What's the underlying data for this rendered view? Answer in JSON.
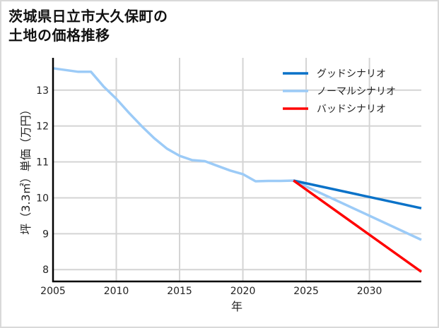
{
  "title": {
    "line1": "茨城県日立市大久保町の",
    "line2": "土地の価格推移"
  },
  "chart_data": {
    "type": "line",
    "title": "茨城県日立市大久保町の土地の価格推移",
    "xlabel": "年",
    "ylabel": "坪（3.3㎡）単価（万円）",
    "xlim": [
      2005,
      2034.1
    ],
    "ylim": [
      7.67,
      13.9
    ],
    "xticks": [
      2005,
      2010,
      2015,
      2020,
      2025,
      2030
    ],
    "yticks": [
      8,
      9,
      10,
      11,
      12,
      13
    ],
    "grid": true,
    "legend_position": "upper right",
    "series": [
      {
        "name": "グッドシナリオ",
        "color": "#0a72c8",
        "x": [
          2024,
          2034.1
        ],
        "y": [
          10.48,
          9.71
        ]
      },
      {
        "name": "ノーマルシナリオ",
        "color": "#9ccbf7",
        "x": [
          2005,
          2007,
          2008,
          2009,
          2010,
          2011,
          2012,
          2013,
          2014,
          2015,
          2016,
          2017,
          2018,
          2019,
          2020,
          2021,
          2022,
          2023,
          2024,
          2034.1
        ],
        "y": [
          13.61,
          13.51,
          13.51,
          13.1,
          12.76,
          12.37,
          12.0,
          11.66,
          11.37,
          11.17,
          11.05,
          11.02,
          10.89,
          10.76,
          10.66,
          10.46,
          10.47,
          10.47,
          10.48,
          8.83
        ]
      },
      {
        "name": "バッドシナリオ",
        "color": "#ff0000",
        "x": [
          2024,
          2034.1
        ],
        "y": [
          10.48,
          7.94
        ]
      }
    ]
  }
}
